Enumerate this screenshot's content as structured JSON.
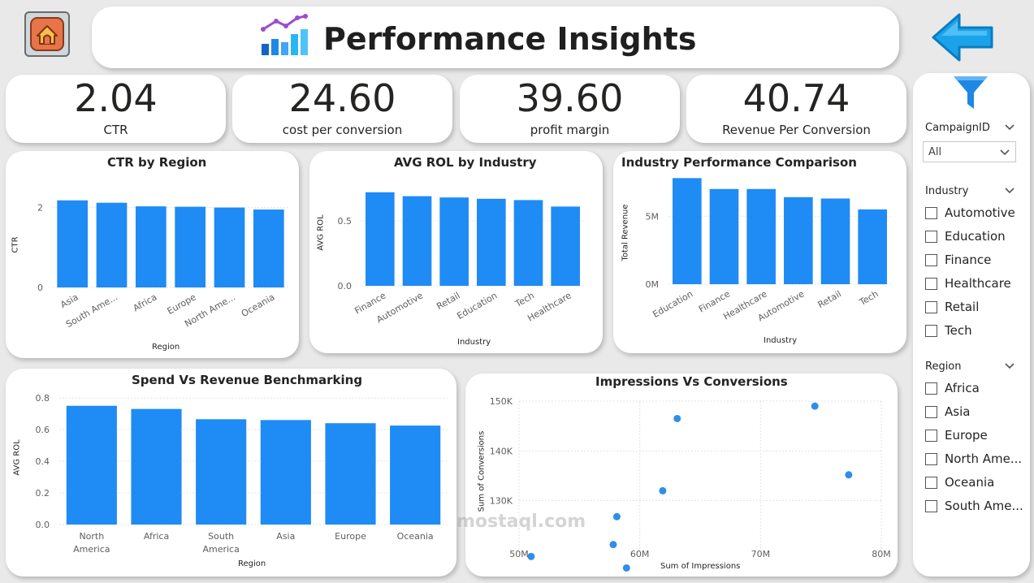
{
  "header": {
    "title": "Performance Insights"
  },
  "icons": {
    "home": "home-icon",
    "title": "bar-chart-icon",
    "back": "back-arrow-icon",
    "filter": "filter-funnel-icon"
  },
  "colors": {
    "bar": "#1f8bf5",
    "point": "#2e8fe6",
    "home_bg": "#e8744a",
    "arrow": "#1aa3e8"
  },
  "kpis": [
    {
      "value": "2.04",
      "label": "CTR"
    },
    {
      "value": "24.60",
      "label": "cost per conversion"
    },
    {
      "value": "39.60",
      "label": "profit margin"
    },
    {
      "value": "40.74",
      "label": "Revenue Per Conversion"
    }
  ],
  "chart_data": [
    {
      "type": "bar",
      "title": "CTR by Region",
      "xlabel": "Region",
      "ylabel": "CTR",
      "categories": [
        "Asia",
        "South Ame...",
        "Africa",
        "Europe",
        "North Ame...",
        "Oceania"
      ],
      "values": [
        2.18,
        2.12,
        2.03,
        2.02,
        2.0,
        1.95
      ],
      "ylim": [
        0,
        2.5
      ],
      "yticks": [
        {
          "v": 0,
          "label": "0"
        },
        {
          "v": 2,
          "label": "2"
        }
      ],
      "grid": true
    },
    {
      "type": "bar",
      "title": "AVG ROL by Industry",
      "xlabel": "Industry",
      "ylabel": "AVG ROL",
      "categories": [
        "Finance",
        "Automotive",
        "Retail",
        "Education",
        "Tech",
        "Healthcare"
      ],
      "values": [
        0.72,
        0.69,
        0.68,
        0.67,
        0.66,
        0.61
      ],
      "ylim": [
        0,
        0.8
      ],
      "yticks": [
        {
          "v": 0,
          "label": "0.0"
        },
        {
          "v": 0.5,
          "label": "0.5"
        }
      ],
      "grid": true
    },
    {
      "type": "bar",
      "title": "Industry Performance Comparison",
      "xlabel": "Industry",
      "ylabel": "Total Revenue",
      "categories": [
        "Education",
        "Finance",
        "Healthcare",
        "Automotive",
        "Retail",
        "Tech"
      ],
      "values": [
        7.8,
        7.0,
        7.0,
        6.4,
        6.3,
        5.5
      ],
      "ylim": [
        0,
        8
      ],
      "yticks": [
        {
          "v": 0,
          "label": "0M"
        },
        {
          "v": 5,
          "label": "5M"
        }
      ],
      "grid": true
    },
    {
      "type": "bar",
      "title": "Spend Vs Revenue Benchmarking",
      "xlabel": "Region",
      "ylabel": "AVG ROL",
      "categories": [
        "North America",
        "Africa",
        "South America",
        "Asia",
        "Europe",
        "Oceania"
      ],
      "values": [
        0.75,
        0.73,
        0.665,
        0.66,
        0.64,
        0.625
      ],
      "ylim": [
        0,
        0.8
      ],
      "yticks": [
        {
          "v": 0,
          "label": "0.0"
        },
        {
          "v": 0.2,
          "label": "0.2"
        },
        {
          "v": 0.4,
          "label": "0.4"
        },
        {
          "v": 0.6,
          "label": "0.6"
        },
        {
          "v": 0.8,
          "label": "0.8"
        }
      ],
      "grid": true
    },
    {
      "type": "scatter",
      "title": "Impressions Vs Conversions",
      "xlabel": "Sum of Impressions",
      "ylabel": "Sum of Conversions",
      "xlim": [
        50,
        80
      ],
      "ylim": [
        120,
        150
      ],
      "xticks": [
        {
          "v": 50,
          "label": "50M"
        },
        {
          "v": 60,
          "label": "60M"
        },
        {
          "v": 70,
          "label": "70M"
        },
        {
          "v": 80,
          "label": "80M"
        }
      ],
      "yticks": [
        {
          "v": 130,
          "label": "130K"
        },
        {
          "v": 140,
          "label": "140K"
        },
        {
          "v": 150,
          "label": "150K"
        }
      ],
      "points": [
        {
          "x": 51.0,
          "y": 118.8
        },
        {
          "x": 57.8,
          "y": 121.2
        },
        {
          "x": 58.1,
          "y": 126.8
        },
        {
          "x": 58.9,
          "y": 116.5
        },
        {
          "x": 61.9,
          "y": 132.0
        },
        {
          "x": 63.1,
          "y": 146.5
        },
        {
          "x": 74.5,
          "y": 149.0
        },
        {
          "x": 77.3,
          "y": 135.2
        }
      ],
      "grid": true
    }
  ],
  "slicers": {
    "campaign": {
      "label": "CampaignID",
      "value": "All"
    },
    "industry": {
      "label": "Industry",
      "items": [
        "Automotive",
        "Education",
        "Finance",
        "Healthcare",
        "Retail",
        "Tech"
      ]
    },
    "region": {
      "label": "Region",
      "items": [
        "Africa",
        "Asia",
        "Europe",
        "North Ame...",
        "Oceania",
        "South Ame..."
      ]
    }
  },
  "watermark": "mostaql.com"
}
